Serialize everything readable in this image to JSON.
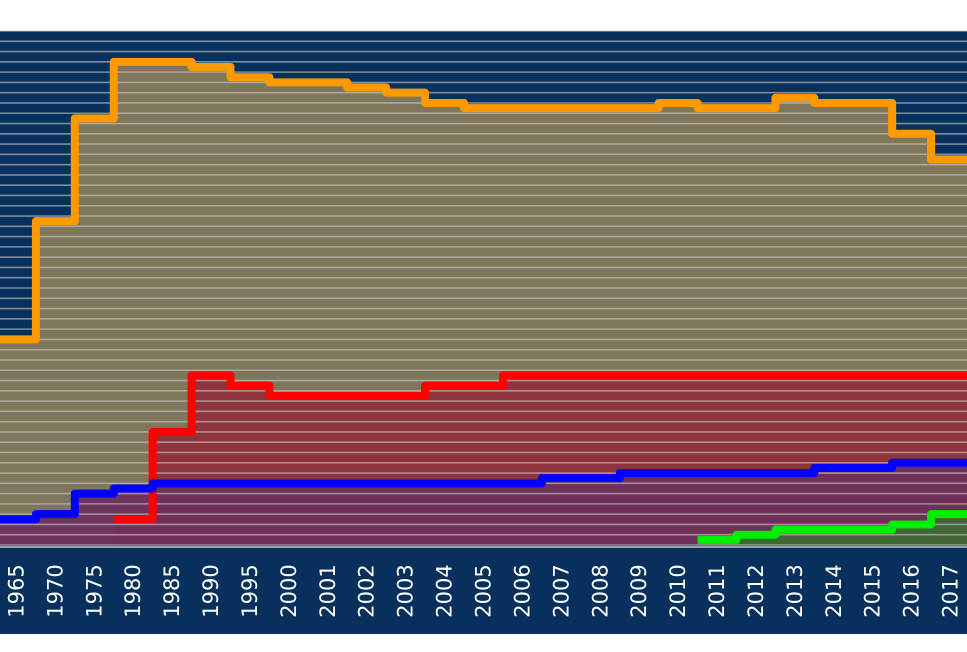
{
  "chart_data": {
    "type": "line",
    "step": true,
    "filled": true,
    "title": "",
    "xlabel": "",
    "ylabel": "",
    "categories": [
      "1965",
      "1970",
      "1975",
      "1980",
      "1985",
      "1990",
      "1995",
      "2000",
      "2001",
      "2002",
      "2003",
      "2004",
      "2005",
      "2006",
      "2007",
      "2008",
      "2009",
      "2010",
      "2011",
      "2012",
      "2013",
      "2014",
      "2015",
      "2016",
      "2017"
    ],
    "ylim": [
      0,
      100
    ],
    "grid": true,
    "legend": "none",
    "series": [
      {
        "color": "#ff9900",
        "fill": "#8a7d5b",
        "values": [
          40,
          63,
          83,
          94,
          94,
          93,
          91,
          90,
          90,
          89,
          88,
          86,
          85,
          85,
          85,
          85,
          85,
          86,
          85,
          85,
          87,
          86,
          86,
          80,
          75
        ]
      },
      {
        "color": "#ff0000",
        "fill": "#8f2f3a",
        "start_index": 3,
        "values": [
          null,
          null,
          null,
          5,
          22,
          33,
          31,
          29,
          29,
          29,
          29,
          31,
          31,
          33,
          33,
          33,
          33,
          33,
          33,
          33,
          33,
          33,
          33,
          33,
          33
        ]
      },
      {
        "color": "#0000ff",
        "fill": "#6b2f5c",
        "values": [
          5,
          6,
          10,
          11,
          12,
          12,
          12,
          12,
          12,
          12,
          12,
          12,
          12,
          12,
          13,
          13,
          14,
          14,
          14,
          14,
          14,
          15,
          15,
          16,
          16
        ]
      },
      {
        "color": "#00ee00",
        "fill": "#3f6b33",
        "start_index": 18,
        "values": [
          null,
          null,
          null,
          null,
          null,
          null,
          null,
          null,
          null,
          null,
          null,
          null,
          null,
          null,
          null,
          null,
          null,
          null,
          1,
          2,
          3,
          3,
          3,
          4,
          6
        ]
      }
    ]
  },
  "style": {
    "plot_bg": "#07315c",
    "axis_bg": "#07315c",
    "gridline_color": "#c8c8c8",
    "tick_text_color": "#ffffff"
  }
}
